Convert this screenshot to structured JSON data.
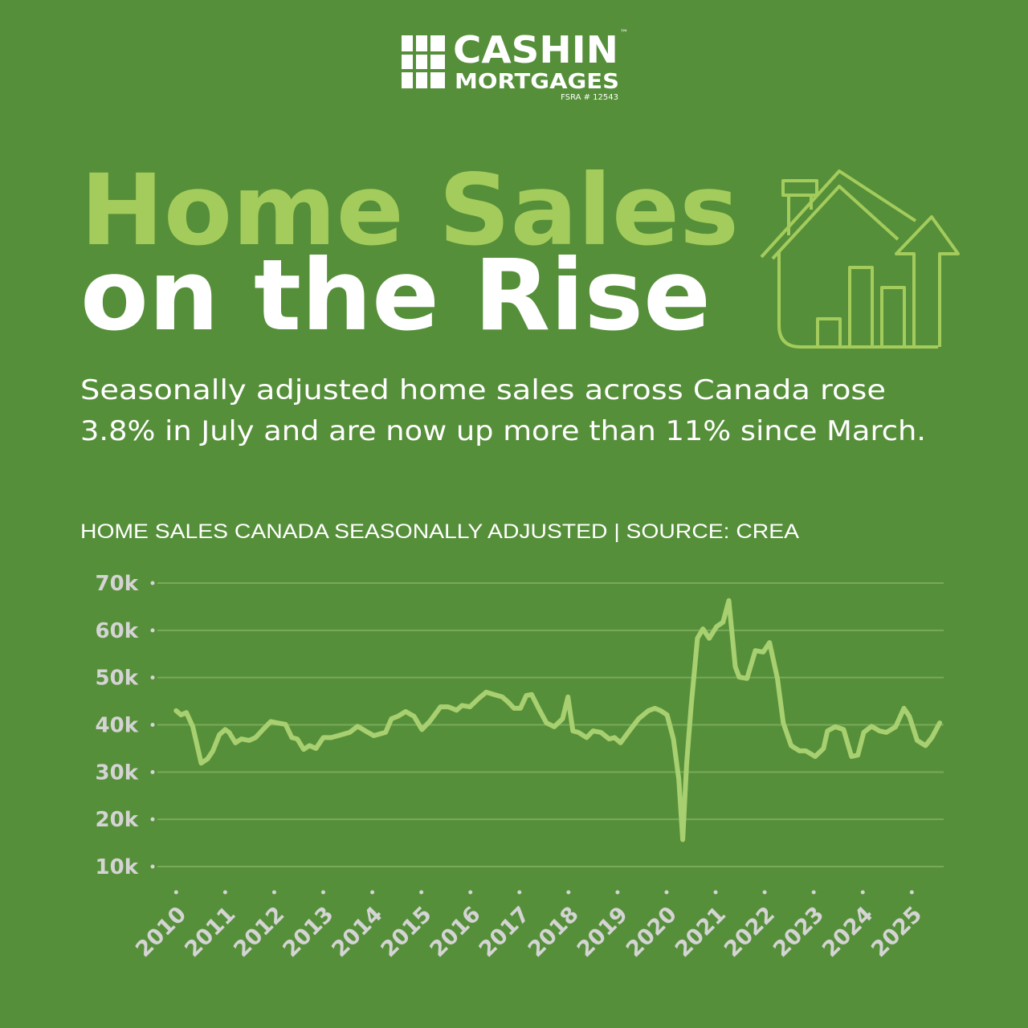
{
  "logo": {
    "name": "CASHIN",
    "mark": "™",
    "sub": "MORTGAGES",
    "license": "FSRA # 12543"
  },
  "headline": [
    "Home Sales",
    "on the Rise"
  ],
  "description": [
    "Seasonally adjusted home sales across Canada rose",
    "3.8% in July and are now up more than 11% since March."
  ],
  "chart_data": {
    "type": "line",
    "title": "HOME SALES CANADA SEASONALLY ADJUSTED | SOURCE: CREA",
    "color": "#a8d070",
    "grid": true,
    "x": [
      2010.0,
      2010.1,
      2010.21,
      2010.34,
      2010.51,
      2010.64,
      2010.75,
      2010.88,
      2011.0,
      2011.08,
      2011.21,
      2011.33,
      2011.49,
      2011.62,
      2011.77,
      2011.93,
      2012.06,
      2012.23,
      2012.36,
      2012.47,
      2012.6,
      2012.72,
      2012.85,
      2013.0,
      2013.16,
      2013.37,
      2013.54,
      2013.7,
      2013.86,
      2014.03,
      2014.27,
      2014.39,
      2014.52,
      2014.68,
      2014.85,
      2015.01,
      2015.17,
      2015.39,
      2015.55,
      2015.72,
      2015.83,
      2015.99,
      2016.16,
      2016.32,
      2016.48,
      2016.65,
      2016.78,
      2016.89,
      2017.02,
      2017.14,
      2017.25,
      2017.39,
      2017.55,
      2017.71,
      2017.88,
      2017.99,
      2018.09,
      2018.2,
      2018.37,
      2018.5,
      2018.66,
      2018.83,
      2018.94,
      2019.06,
      2019.24,
      2019.43,
      2019.63,
      2019.76,
      2019.88,
      2020.01,
      2020.14,
      2020.25,
      2020.33,
      2020.41,
      2020.5,
      2020.63,
      2020.74,
      2020.87,
      2021.02,
      2021.15,
      2021.27,
      2021.4,
      2021.48,
      2021.64,
      2021.81,
      2021.97,
      2022.1,
      2022.26,
      2022.38,
      2022.54,
      2022.71,
      2022.84,
      2023.03,
      2023.2,
      2023.28,
      2023.44,
      2023.61,
      2023.77,
      2023.9,
      2024.02,
      2024.18,
      2024.34,
      2024.48,
      2024.67,
      2024.84,
      2024.95,
      2025.11,
      2025.28,
      2025.41,
      2025.57
    ],
    "values": [
      43000,
      42100,
      42600,
      39600,
      31900,
      32800,
      34500,
      37900,
      39000,
      38400,
      36200,
      37000,
      36700,
      37300,
      39000,
      40700,
      40400,
      40100,
      37300,
      37000,
      34800,
      35600,
      35000,
      37300,
      37300,
      37900,
      38400,
      39700,
      38700,
      37700,
      38400,
      41300,
      41800,
      42800,
      41800,
      39000,
      40700,
      43800,
      43800,
      43100,
      44100,
      43800,
      45500,
      46900,
      46400,
      45900,
      44700,
      43500,
      43500,
      46200,
      46400,
      43500,
      40400,
      39600,
      41300,
      45900,
      38700,
      38400,
      37300,
      38700,
      38400,
      37000,
      37300,
      36200,
      38700,
      41300,
      43000,
      43500,
      43000,
      42100,
      37000,
      28500,
      15700,
      31900,
      43800,
      58300,
      60300,
      58300,
      60800,
      61700,
      66300,
      52300,
      50100,
      49800,
      55700,
      55400,
      57400,
      49800,
      40400,
      35600,
      34500,
      34500,
      33300,
      35000,
      38700,
      39600,
      39000,
      33300,
      33600,
      38400,
      39700,
      38700,
      38400,
      39600,
      43500,
      41800,
      36700,
      35600,
      37300,
      40400
    ],
    "xlim": [
      2009.52,
      2025.65
    ],
    "xticks": [
      2010,
      2011,
      2012,
      2013,
      2014,
      2015,
      2016,
      2017,
      2018,
      2019,
      2020,
      2021,
      2022,
      2023,
      2024,
      2025
    ],
    "ylim": [
      10000,
      70000
    ],
    "yticks": [
      {
        "value": 10000,
        "label": "10k"
      },
      {
        "value": 20000,
        "label": "20k"
      },
      {
        "value": 30000,
        "label": "30k"
      },
      {
        "value": 40000,
        "label": "40k"
      },
      {
        "value": 50000,
        "label": "50k"
      },
      {
        "value": 60000,
        "label": "60k"
      },
      {
        "value": 70000,
        "label": "70k"
      }
    ]
  }
}
